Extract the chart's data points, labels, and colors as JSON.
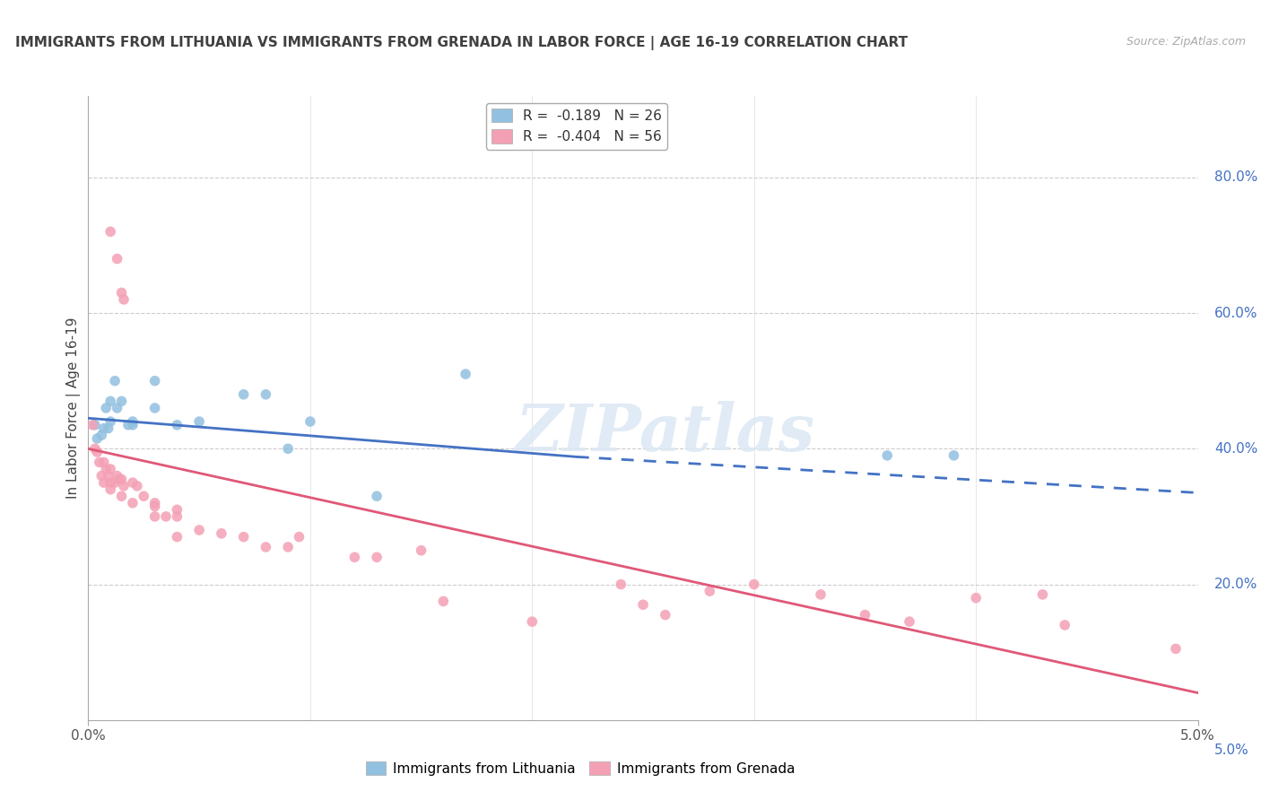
{
  "title": "IMMIGRANTS FROM LITHUANIA VS IMMIGRANTS FROM GRENADA IN LABOR FORCE | AGE 16-19 CORRELATION CHART",
  "source": "Source: ZipAtlas.com",
  "ylabel": "In Labor Force | Age 16-19",
  "ylabel_right_labels": [
    "20.0%",
    "40.0%",
    "60.0%",
    "80.0%"
  ],
  "ylabel_right_values": [
    0.2,
    0.4,
    0.6,
    0.8
  ],
  "xlim": [
    0.0,
    0.05
  ],
  "ylim": [
    0.0,
    0.92
  ],
  "legend_line1": "R =  -0.189   N = 26",
  "legend_line2": "R =  -0.404   N = 56",
  "watermark": "ZIPatlas",
  "lithuania_scatter": [
    [
      0.0003,
      0.435
    ],
    [
      0.0004,
      0.415
    ],
    [
      0.0006,
      0.42
    ],
    [
      0.0007,
      0.43
    ],
    [
      0.0008,
      0.46
    ],
    [
      0.0009,
      0.43
    ],
    [
      0.001,
      0.44
    ],
    [
      0.001,
      0.47
    ],
    [
      0.0012,
      0.5
    ],
    [
      0.0013,
      0.46
    ],
    [
      0.0015,
      0.47
    ],
    [
      0.0018,
      0.435
    ],
    [
      0.002,
      0.435
    ],
    [
      0.002,
      0.44
    ],
    [
      0.003,
      0.5
    ],
    [
      0.003,
      0.46
    ],
    [
      0.004,
      0.435
    ],
    [
      0.005,
      0.44
    ],
    [
      0.007,
      0.48
    ],
    [
      0.008,
      0.48
    ],
    [
      0.009,
      0.4
    ],
    [
      0.01,
      0.44
    ],
    [
      0.013,
      0.33
    ],
    [
      0.017,
      0.51
    ],
    [
      0.036,
      0.39
    ],
    [
      0.039,
      0.39
    ]
  ],
  "grenada_scatter": [
    [
      0.0002,
      0.435
    ],
    [
      0.0003,
      0.4
    ],
    [
      0.0004,
      0.395
    ],
    [
      0.0005,
      0.38
    ],
    [
      0.0006,
      0.36
    ],
    [
      0.0007,
      0.35
    ],
    [
      0.0007,
      0.38
    ],
    [
      0.0008,
      0.37
    ],
    [
      0.0009,
      0.36
    ],
    [
      0.001,
      0.35
    ],
    [
      0.001,
      0.37
    ],
    [
      0.001,
      0.34
    ],
    [
      0.0012,
      0.35
    ],
    [
      0.0013,
      0.36
    ],
    [
      0.0014,
      0.355
    ],
    [
      0.0015,
      0.33
    ],
    [
      0.0015,
      0.355
    ],
    [
      0.0016,
      0.345
    ],
    [
      0.002,
      0.35
    ],
    [
      0.002,
      0.32
    ],
    [
      0.0022,
      0.345
    ],
    [
      0.0025,
      0.33
    ],
    [
      0.003,
      0.3
    ],
    [
      0.003,
      0.315
    ],
    [
      0.003,
      0.32
    ],
    [
      0.0035,
      0.3
    ],
    [
      0.004,
      0.27
    ],
    [
      0.004,
      0.3
    ],
    [
      0.004,
      0.31
    ],
    [
      0.005,
      0.28
    ],
    [
      0.006,
      0.275
    ],
    [
      0.007,
      0.27
    ],
    [
      0.008,
      0.255
    ],
    [
      0.009,
      0.255
    ],
    [
      0.0095,
      0.27
    ],
    [
      0.001,
      0.72
    ],
    [
      0.0013,
      0.68
    ],
    [
      0.0015,
      0.63
    ],
    [
      0.0016,
      0.62
    ],
    [
      0.012,
      0.24
    ],
    [
      0.013,
      0.24
    ],
    [
      0.015,
      0.25
    ],
    [
      0.016,
      0.175
    ],
    [
      0.02,
      0.145
    ],
    [
      0.024,
      0.2
    ],
    [
      0.025,
      0.17
    ],
    [
      0.026,
      0.155
    ],
    [
      0.028,
      0.19
    ],
    [
      0.03,
      0.2
    ],
    [
      0.033,
      0.185
    ],
    [
      0.035,
      0.155
    ],
    [
      0.037,
      0.145
    ],
    [
      0.04,
      0.18
    ],
    [
      0.043,
      0.185
    ],
    [
      0.044,
      0.14
    ],
    [
      0.049,
      0.105
    ]
  ],
  "lithuania_line_solid": {
    "x0": 0.0,
    "x1": 0.022,
    "y0": 0.445,
    "y1": 0.388
  },
  "lithuania_line_dashed": {
    "x0": 0.022,
    "x1": 0.05,
    "y0": 0.388,
    "y1": 0.335
  },
  "grenada_line": {
    "x0": 0.0,
    "x1": 0.05,
    "y0": 0.4,
    "y1": 0.04
  },
  "scatter_size": 70,
  "lithuania_color": "#92c0e0",
  "grenada_color": "#f4a0b4",
  "lithuania_line_color": "#4472c4",
  "grenada_line_color": "#e05878",
  "grid_color": "#cccccc",
  "background_color": "#ffffff",
  "right_axis_color": "#4472c4",
  "title_color": "#404040",
  "source_color": "#aaaaaa"
}
